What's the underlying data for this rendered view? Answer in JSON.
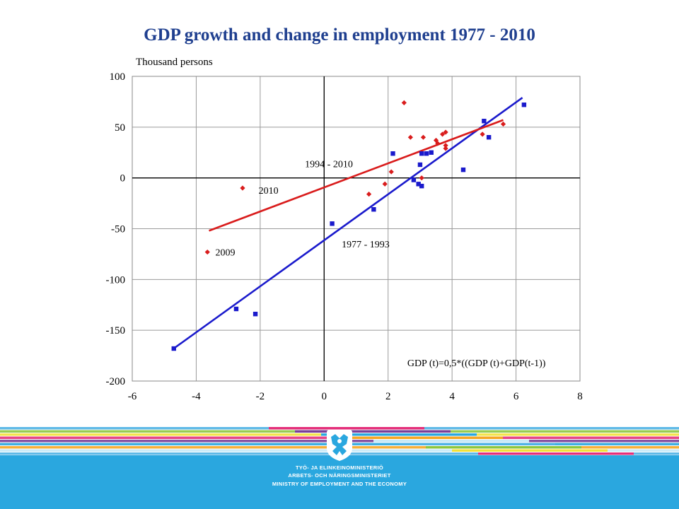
{
  "chart_data": {
    "type": "scatter",
    "title": "GDP growth and change in employment 1977 - 2010",
    "ylabel": "Thousand persons",
    "xlabel": "",
    "xlim": [
      -6,
      8
    ],
    "ylim": [
      -200,
      100
    ],
    "x_ticks": [
      -6,
      -4,
      -2,
      0,
      2,
      4,
      6,
      8
    ],
    "y_ticks": [
      100,
      50,
      0,
      -50,
      -100,
      -150,
      -200
    ],
    "grid": true,
    "series": [
      {
        "name": "1977 - 1993",
        "color": "#1a1acc",
        "marker": "square",
        "points": [
          [
            -4.7,
            -168
          ],
          [
            -2.75,
            -129
          ],
          [
            -2.15,
            -134
          ],
          [
            0.25,
            -45
          ],
          [
            1.55,
            -31
          ],
          [
            2.15,
            24
          ],
          [
            2.8,
            -2
          ],
          [
            2.95,
            -6
          ],
          [
            3.0,
            13
          ],
          [
            3.05,
            -8
          ],
          [
            3.05,
            24
          ],
          [
            3.2,
            24
          ],
          [
            3.35,
            25
          ],
          [
            4.35,
            8
          ],
          [
            5.0,
            56
          ],
          [
            5.15,
            40
          ],
          [
            6.25,
            72
          ]
        ],
        "trend": [
          [
            -4.75,
            -169
          ],
          [
            6.2,
            79
          ]
        ]
      },
      {
        "name": "1994 - 2010",
        "color": "#d91c1c",
        "marker": "diamond",
        "points": [
          [
            -3.65,
            -73
          ],
          [
            -2.55,
            -10
          ],
          [
            1.4,
            -16
          ],
          [
            1.9,
            -6
          ],
          [
            2.1,
            6
          ],
          [
            2.5,
            74
          ],
          [
            2.7,
            40
          ],
          [
            3.05,
            0
          ],
          [
            3.1,
            40
          ],
          [
            3.5,
            37
          ],
          [
            3.55,
            34
          ],
          [
            3.7,
            43
          ],
          [
            3.8,
            45
          ],
          [
            3.8,
            32
          ],
          [
            3.8,
            29
          ],
          [
            4.95,
            43
          ],
          [
            5.6,
            53
          ]
        ],
        "trend": [
          [
            -3.6,
            -52
          ],
          [
            5.6,
            57
          ]
        ]
      }
    ],
    "annotations": [
      {
        "text": "2010",
        "x": -2.05,
        "y": -12
      },
      {
        "text": "2009",
        "x": -3.4,
        "y": -73
      },
      {
        "text": "1994 - 2010",
        "x": -0.6,
        "y": 14
      },
      {
        "text": "1977 - 1993",
        "x": 0.55,
        "y": -65
      },
      {
        "text": "GDP (t)=0,5*((GDP (t)+GDP(t-1))",
        "x": 2.6,
        "y": -182
      }
    ]
  },
  "footer": {
    "ministry_fi": "TYÖ- JA ELINKEINOMINISTERIÖ",
    "ministry_sv": "ARBETS- OCH NÄRINGSMINISTERIET",
    "ministry_en": "MINISTRY OF EMPLOYMENT AND THE ECONOMY",
    "logo": "finnish-lion-coat-of-arms",
    "stripe_colors": [
      "#4fb3e6",
      "#8cc63f",
      "#f2e03a",
      "#e4307a",
      "#7a3f98",
      "#2aa7df",
      "#f5a623",
      "#c7e9f7"
    ]
  }
}
